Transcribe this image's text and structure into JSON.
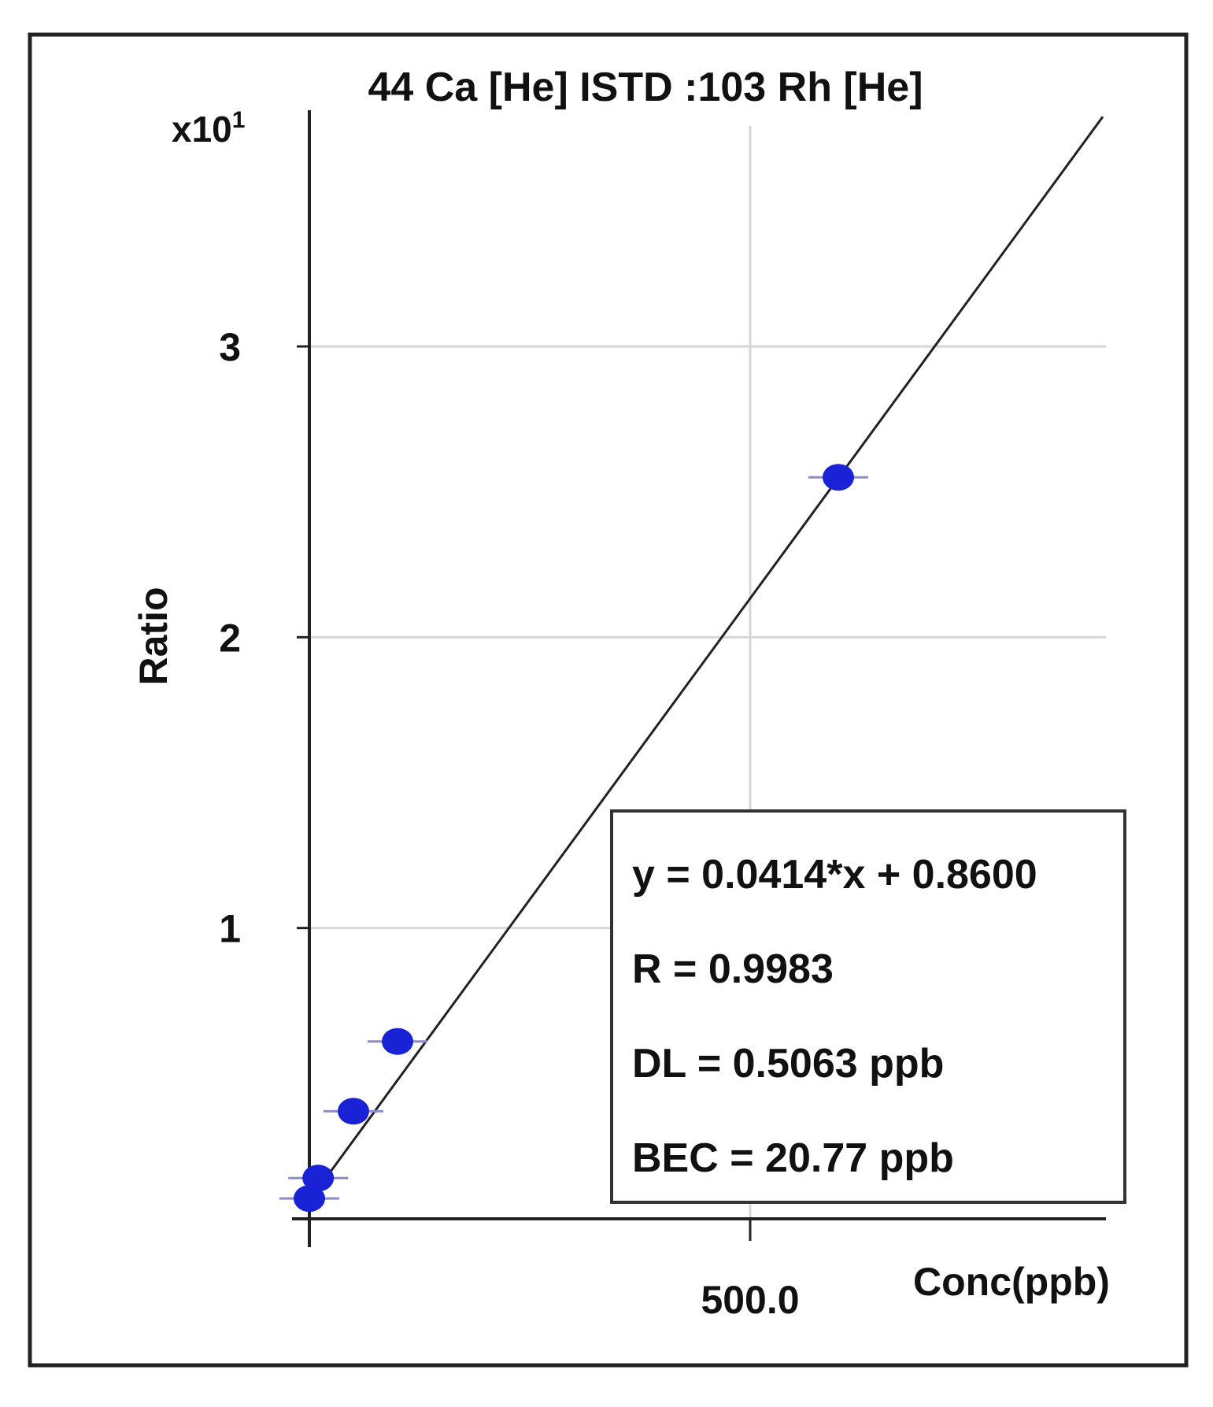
{
  "chart_data": {
    "type": "scatter",
    "title": "44 Ca [He] ISTD :103 Rh [He]",
    "xlabel": "Conc(ppb)",
    "ylabel": "Ratio",
    "y_multiplier_label": "x10",
    "y_multiplier_exponent": "1",
    "x_tick_labels": [
      "500.0"
    ],
    "x_ticks": [
      500
    ],
    "y_tick_labels": [
      "1",
      "2",
      "3"
    ],
    "y_ticks": [
      1,
      2,
      3
    ],
    "xlim": [
      0,
      900
    ],
    "ylim": [
      0,
      3.75
    ],
    "grid": true,
    "points": [
      {
        "x": 0,
        "y": 0.07
      },
      {
        "x": 10,
        "y": 0.14
      },
      {
        "x": 50,
        "y": 0.37
      },
      {
        "x": 100,
        "y": 0.61
      },
      {
        "x": 600,
        "y": 2.55
      }
    ],
    "fit_line": {
      "slope": 0.0414,
      "intercept": 0.86,
      "x_range": [
        0,
        900
      ]
    },
    "annotations": [
      "y = 0.0414*x + 0.8600",
      "R = 0.9983",
      "DL = 0.5063 ppb",
      "BEC = 20.77 ppb"
    ],
    "colors": {
      "point": "#1a22d6",
      "line": "#222222",
      "grid": "#d6d6d6",
      "frame": "#222222"
    }
  }
}
